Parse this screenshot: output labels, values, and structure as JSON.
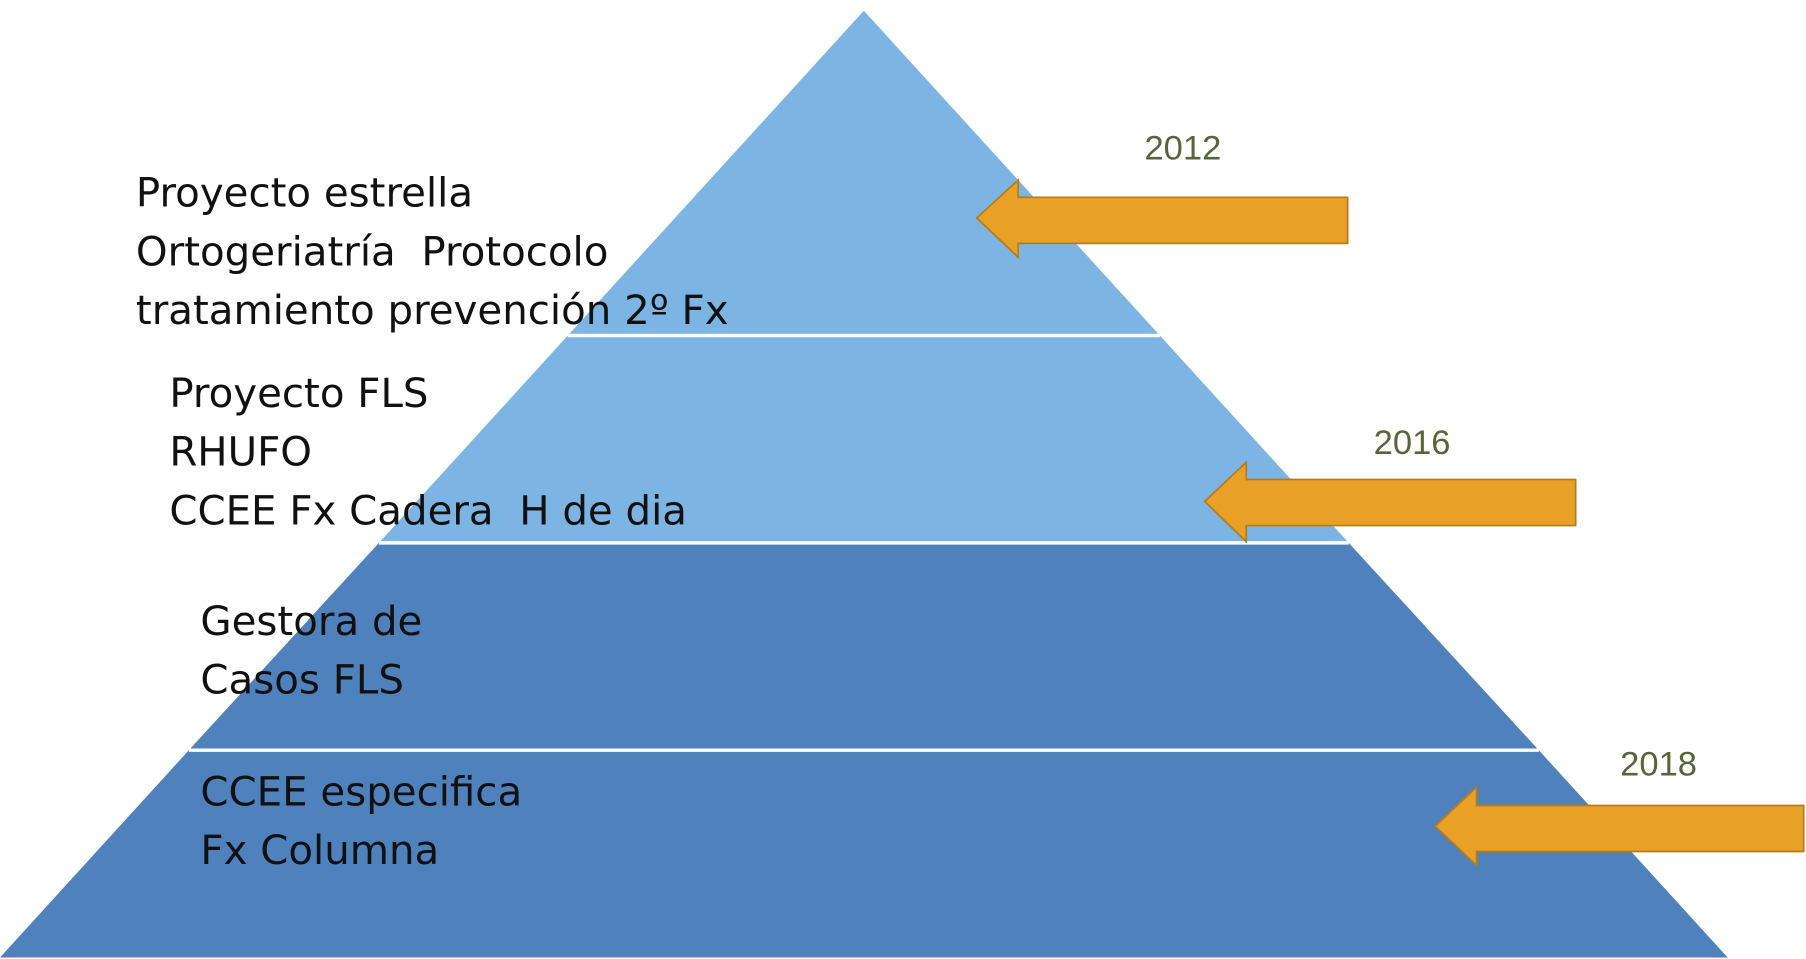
{
  "layers": [
    {
      "lines": [
        "Proyecto estrella",
        "Ortogeriatría  Protocolo",
        "tratamiento prevención 2º Fx"
      ]
    },
    {
      "lines": [
        "Proyecto FLS",
        "RHUFO",
        "CCEE Fx Cadera  H de dia"
      ]
    },
    {
      "lines": [
        "Gestora de",
        "Casos FLS"
      ]
    },
    {
      "lines": [
        "CCEE especifica",
        "Fx Columna"
      ]
    }
  ],
  "years": [
    "2012",
    "2016",
    "2018"
  ]
}
